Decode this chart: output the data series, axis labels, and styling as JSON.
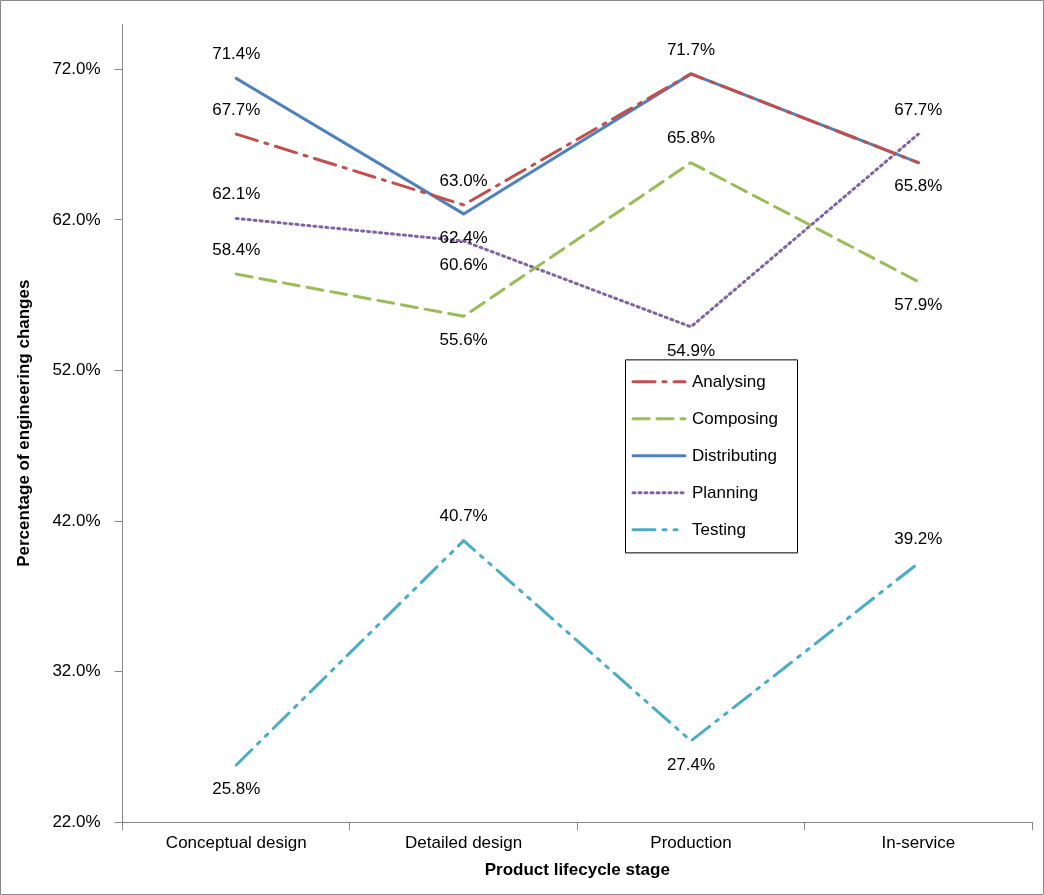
{
  "chart_data": {
    "type": "line",
    "xlabel": "Product lifecycle stage",
    "ylabel": "Percentage of engineering changes",
    "categories": [
      "Conceptual design",
      "Detailed design",
      "Production",
      "In-service"
    ],
    "series": [
      {
        "name": "Analysing",
        "color": "#c0504d",
        "line_style": "dashdot",
        "values": [
          67.7,
          63.0,
          71.7,
          65.8
        ],
        "value_labels": [
          "67.7%",
          "63.0%",
          null,
          null
        ]
      },
      {
        "name": "Composing",
        "color": "#9bbb59",
        "line_style": "dashed",
        "values": [
          58.4,
          55.6,
          65.8,
          57.9
        ],
        "value_labels": [
          "58.4%",
          "55.6%",
          "65.8%",
          "57.9%"
        ]
      },
      {
        "name": "Distributing",
        "color": "#4f81bd",
        "line_style": "solid",
        "values": [
          71.4,
          62.4,
          71.7,
          65.8
        ],
        "value_labels": [
          "71.4%",
          "62.4%",
          "71.7%",
          "65.8%"
        ]
      },
      {
        "name": "Planning",
        "color": "#8064a2",
        "line_style": "dotted",
        "values": [
          62.1,
          60.6,
          54.9,
          67.7
        ],
        "value_labels": [
          "62.1%",
          "60.6%",
          "54.9%",
          "67.7%"
        ]
      },
      {
        "name": "Testing",
        "color": "#4bacc6",
        "line_style": "dashdotdot",
        "values": [
          25.8,
          40.7,
          27.4,
          39.2
        ],
        "value_labels": [
          "25.8%",
          "40.7%",
          "27.4%",
          "39.2%"
        ]
      }
    ],
    "ylim": [
      22,
      75
    ],
    "yticks": [
      {
        "value": 22,
        "label": "22.0%"
      },
      {
        "value": 32,
        "label": "32.0%"
      },
      {
        "value": 42,
        "label": "42.0%"
      },
      {
        "value": 52,
        "label": "52.0%"
      },
      {
        "value": 62,
        "label": "62.0%"
      },
      {
        "value": 72,
        "label": "72.0%"
      }
    ],
    "grid": false,
    "legend": "right",
    "marker": "none"
  }
}
